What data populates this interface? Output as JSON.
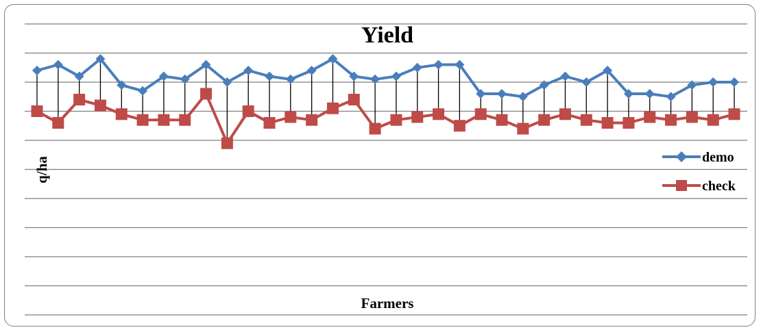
{
  "chart_data": {
    "type": "line",
    "title": "Yield",
    "xlabel": "Farmers",
    "ylabel": "q/ha",
    "grid": true,
    "legend_position": "right",
    "high_low_lines": true,
    "ylim": [
      0,
      10
    ],
    "x": [
      1,
      2,
      3,
      4,
      5,
      6,
      7,
      8,
      9,
      10,
      11,
      12,
      13,
      14,
      15,
      16,
      17,
      18,
      19,
      20,
      21,
      22,
      23,
      24,
      25,
      26,
      27,
      28,
      29,
      30,
      31,
      32,
      33,
      34
    ],
    "series": [
      {
        "name": "demo",
        "color": "#4a7ebb",
        "marker": "diamond",
        "values": [
          8.4,
          8.6,
          8.2,
          8.8,
          7.9,
          7.7,
          8.2,
          8.1,
          8.6,
          8.0,
          8.4,
          8.2,
          8.1,
          8.4,
          8.8,
          8.2,
          8.1,
          8.2,
          8.5,
          8.6,
          8.6,
          7.6,
          7.6,
          7.5,
          7.9,
          8.2,
          8.0,
          8.4,
          7.6,
          7.6,
          7.5,
          7.9,
          8.0,
          8.0
        ]
      },
      {
        "name": "check",
        "color": "#be4b48",
        "marker": "square",
        "values": [
          7.0,
          6.6,
          7.4,
          7.2,
          6.9,
          6.7,
          6.7,
          6.7,
          7.6,
          5.9,
          7.0,
          6.6,
          6.8,
          6.7,
          7.1,
          7.4,
          6.4,
          6.7,
          6.8,
          6.9,
          6.5,
          6.9,
          6.7,
          6.4,
          6.7,
          6.9,
          6.7,
          6.6,
          6.6,
          6.8,
          6.7,
          6.8,
          6.7,
          6.9
        ]
      }
    ]
  }
}
